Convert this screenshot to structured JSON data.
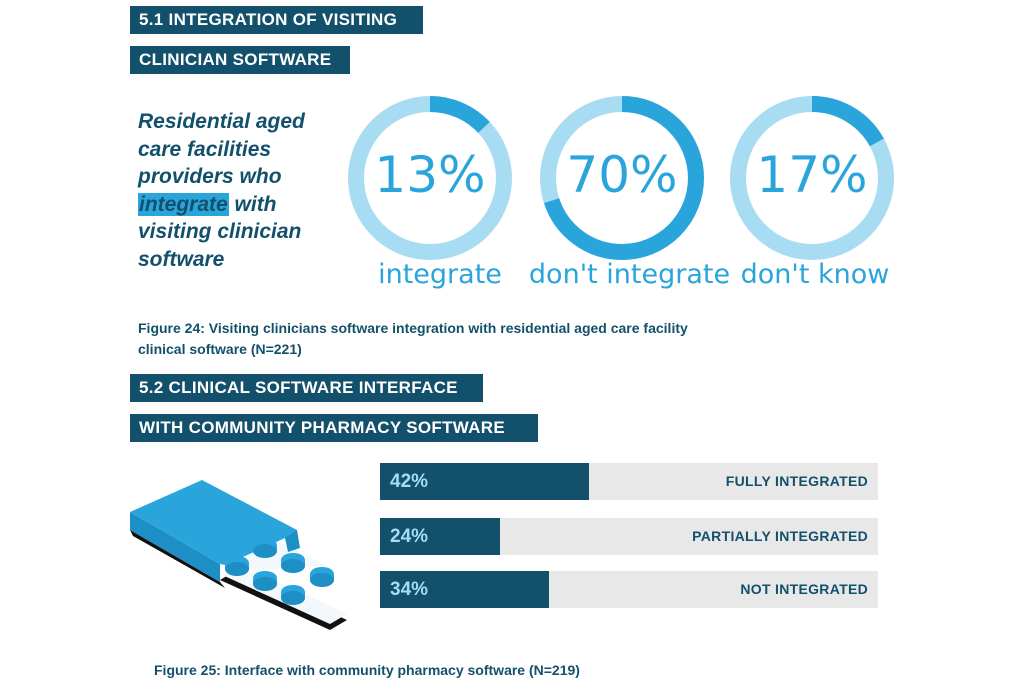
{
  "section1": {
    "heading_line1": "5.1 INTEGRATION OF VISITING",
    "heading_line2": "CLINICIAN SOFTWARE",
    "intro_before": "Residential aged care facilities providers who ",
    "intro_highlight": "integrate",
    "intro_after": " with visiting clinician software",
    "caption": "Figure 24: Visiting clinicians software integration with residential aged care facility clinical software (N=221)"
  },
  "section2": {
    "heading_line1": "5.2 CLINICAL SOFTWARE INTERFACE",
    "heading_line2": "WITH COMMUNITY PHARMACY SOFTWARE",
    "caption": "Figure 25: Interface with community pharmacy software (N=219)",
    "illustration": "pill-blister-pack-icon"
  },
  "colors": {
    "navy": "#12506b",
    "accent": "#2aa5dc",
    "accent_light": "#a8dcf2",
    "track": "#e8e8e8"
  },
  "chart_data": [
    {
      "type": "pie",
      "style": "donut",
      "title": "Residential aged care facilities providers who integrate with visiting clinician software",
      "categories": [
        "integrate",
        "don't integrate",
        "don't know"
      ],
      "values": [
        13,
        70,
        17
      ],
      "value_labels": [
        "13%",
        "70%",
        "17%"
      ],
      "unit": "%",
      "caption": "Figure 24: Visiting clinicians software integration with residential aged care facility clinical software (N=221)"
    },
    {
      "type": "bar",
      "orientation": "horizontal",
      "title": "Interface with community pharmacy software",
      "categories": [
        "FULLY INTEGRATED",
        "PARTIALLY INTEGRATED",
        "NOT INTEGRATED"
      ],
      "values": [
        42,
        24,
        34
      ],
      "value_labels": [
        "42%",
        "24%",
        "34%"
      ],
      "xlim": [
        0,
        100
      ],
      "unit": "%",
      "caption": "Figure 25: Interface with community pharmacy software (N=219)"
    }
  ]
}
